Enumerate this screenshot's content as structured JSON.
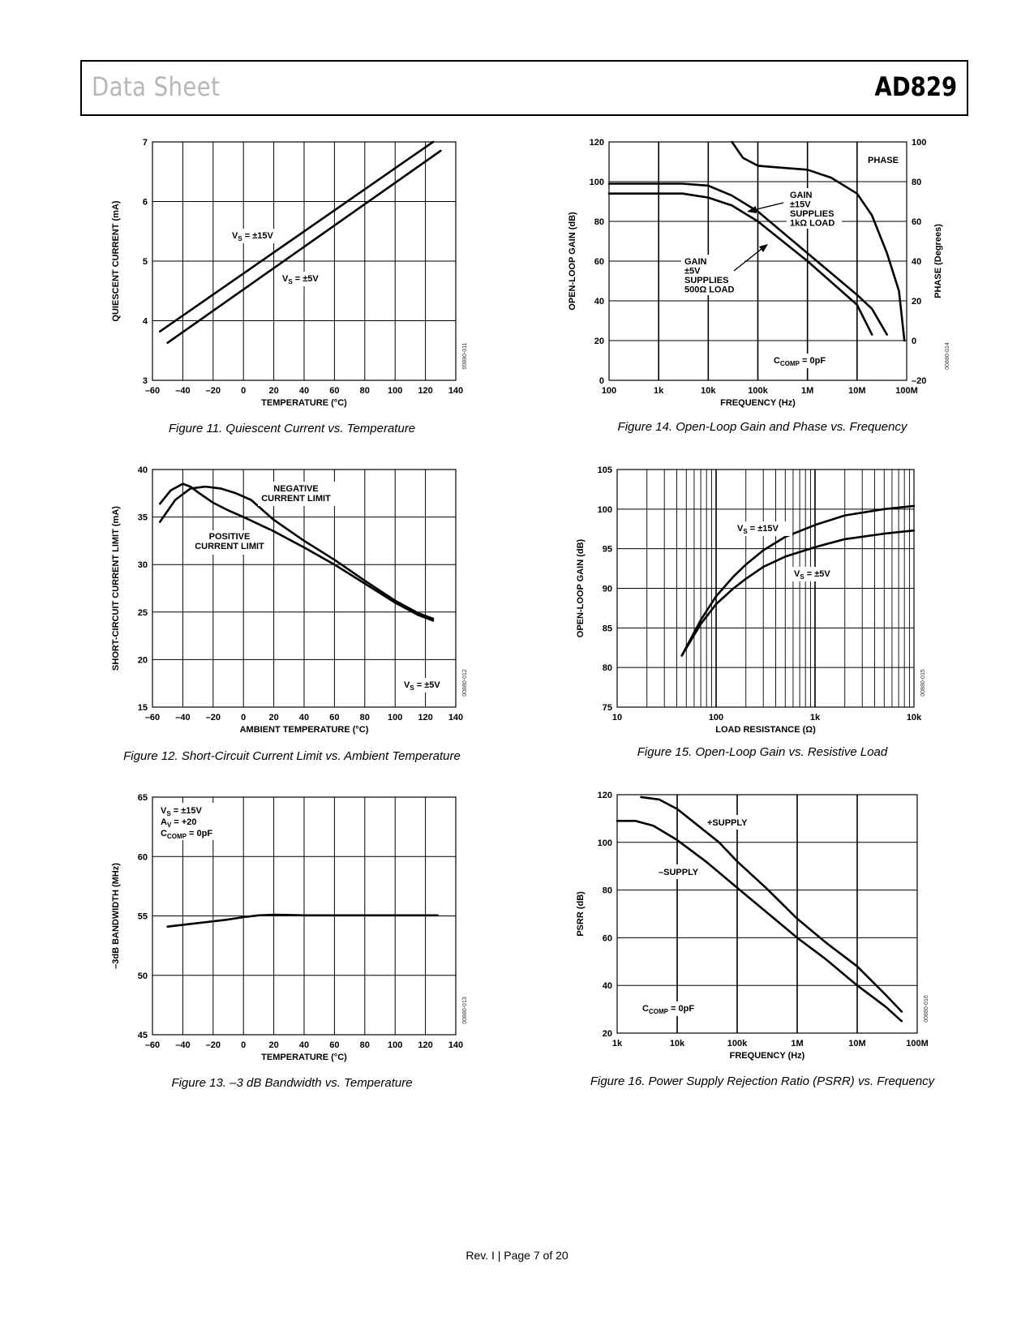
{
  "header": {
    "left": "Data Sheet",
    "right": "AD829"
  },
  "footer": "Rev. I | Page 7 of 20",
  "chart_data": [
    {
      "id": "fig11",
      "type": "line",
      "caption": "Figure 11. Quiescent Current vs. Temperature",
      "code": "00880-011",
      "xlabel": "TEMPERATURE (°C)",
      "ylabel": "QUIESCENT CURRENT (mA)",
      "xlim": [
        -60,
        140
      ],
      "ylim": [
        3,
        7
      ],
      "xticks": [
        "–60",
        "–40",
        "–20",
        "0",
        "20",
        "40",
        "60",
        "80",
        "100",
        "120",
        "140"
      ],
      "yticks": [
        "3",
        "4",
        "5",
        "6",
        "7"
      ],
      "series": [
        {
          "name": "VS = ±15V",
          "x": [
            -55,
            125
          ],
          "y": [
            3.82,
            7.0
          ]
        },
        {
          "name": "VS = ±5V",
          "x": [
            -50,
            130
          ],
          "y": [
            3.63,
            6.85
          ]
        }
      ],
      "annotations": [
        {
          "label": "V",
          "sub": "S",
          "rest": " = ±15V"
        },
        {
          "label": "V",
          "sub": "S",
          "rest": " = ±5V"
        }
      ]
    },
    {
      "id": "fig12",
      "type": "line",
      "caption": "Figure 12. Short-Circuit Current Limit vs. Ambient Temperature",
      "code": "00880-012",
      "xlabel": "AMBIENT TEMPERATURE (°C)",
      "ylabel": "SHORT-CIRCUIT CURRENT LIMIT (mA)",
      "xlim": [
        -60,
        140
      ],
      "ylim": [
        15,
        40
      ],
      "xticks": [
        "–60",
        "–40",
        "–20",
        "0",
        "20",
        "40",
        "60",
        "80",
        "100",
        "120",
        "140"
      ],
      "yticks": [
        "15",
        "20",
        "25",
        "30",
        "35",
        "40"
      ],
      "series": [
        {
          "name": "NEGATIVE CURRENT LIMIT",
          "x": [
            -55,
            -45,
            -35,
            -25,
            -15,
            -5,
            5,
            20,
            40,
            60,
            80,
            100,
            115,
            125
          ],
          "y": [
            34.5,
            36.8,
            38.0,
            38.2,
            38.0,
            37.5,
            36.8,
            34.7,
            32.5,
            30.5,
            28.3,
            26.2,
            24.9,
            24.3
          ]
        },
        {
          "name": "POSITIVE CURRENT LIMIT",
          "x": [
            -55,
            -48,
            -40,
            -35,
            -30,
            -20,
            -10,
            0,
            20,
            40,
            60,
            80,
            100,
            115,
            125
          ],
          "y": [
            36.4,
            37.8,
            38.5,
            38.2,
            37.6,
            36.5,
            35.7,
            35.0,
            33.5,
            31.8,
            30.0,
            28.0,
            26.0,
            24.7,
            24.1
          ]
        }
      ],
      "annotations": [
        {
          "text": [
            "NEGATIVE",
            "CURRENT LIMIT"
          ]
        },
        {
          "text": [
            "POSITIVE",
            "CURRENT LIMIT"
          ]
        },
        {
          "label": "V",
          "sub": "S",
          "rest": " = ±5V"
        }
      ]
    },
    {
      "id": "fig13",
      "type": "line",
      "caption": "Figure 13. –3 dB Bandwidth vs. Temperature",
      "code": "00880-013",
      "xlabel": "TEMPERATURE (°C)",
      "ylabel": "–3dB BANDWIDTH (MHz)",
      "xlim": [
        -60,
        140
      ],
      "ylim": [
        45,
        65
      ],
      "xticks": [
        "–60",
        "–40",
        "–20",
        "0",
        "20",
        "40",
        "60",
        "80",
        "100",
        "120",
        "140"
      ],
      "yticks": [
        "45",
        "50",
        "55",
        "60",
        "65"
      ],
      "series": [
        {
          "name": "bandwidth",
          "x": [
            -50,
            -30,
            -10,
            0,
            10,
            20,
            30,
            40,
            60,
            80,
            100,
            128
          ],
          "y": [
            54.1,
            54.4,
            54.7,
            54.9,
            55.05,
            55.1,
            55.08,
            55.05,
            55.05,
            55.05,
            55.05,
            55.05
          ]
        }
      ],
      "annotations": [
        {
          "label": "V",
          "sub": "S",
          "rest": " = ±15V"
        },
        {
          "label": "A",
          "sub": "V",
          "rest": " = +20"
        },
        {
          "label": "C",
          "sub": "COMP",
          "rest": " = 0pF"
        }
      ]
    },
    {
      "id": "fig14",
      "type": "line",
      "caption": "Figure 14. Open-Loop Gain and Phase vs. Frequency",
      "code": "00880-014",
      "xlabel": "FREQUENCY (Hz)",
      "ylabel": "OPEN-LOOP GAIN (dB)",
      "y2label": "PHASE (Degrees)",
      "xscale": "log",
      "xlim": [
        100,
        100000000
      ],
      "ylim": [
        0,
        120
      ],
      "y2lim": [
        -20,
        100
      ],
      "xticks": [
        "100",
        "1k",
        "10k",
        "100k",
        "1M",
        "10M",
        "100M"
      ],
      "yticks": [
        "0",
        "20",
        "40",
        "60",
        "80",
        "100",
        "120"
      ],
      "y2ticks": [
        "–20",
        "0",
        "20",
        "40",
        "60",
        "80",
        "100"
      ],
      "series": [
        {
          "name": "GAIN ±15V SUPPLIES 1kΩ LOAD",
          "axis": "left",
          "x": [
            100,
            3000,
            10000,
            30000,
            100000,
            1000000,
            10000000,
            20000000,
            40000000
          ],
          "y": [
            99,
            99,
            98,
            93,
            85,
            64,
            43,
            36,
            23
          ]
        },
        {
          "name": "GAIN ±5V SUPPLIES 500Ω LOAD",
          "axis": "left",
          "x": [
            100,
            3000,
            10000,
            30000,
            100000,
            1000000,
            10000000,
            20000000
          ],
          "y": [
            94,
            94,
            92,
            88,
            80,
            60,
            38,
            23
          ]
        },
        {
          "name": "PHASE",
          "axis": "right",
          "x": [
            30000,
            50000,
            100000,
            300000,
            1000000,
            3000000,
            10000000,
            20000000,
            40000000,
            70000000,
            90000000
          ],
          "y": [
            100,
            92,
            88,
            87,
            86,
            82,
            74,
            63,
            44,
            25,
            0
          ]
        }
      ],
      "annotations": [
        {
          "text": [
            "PHASE"
          ]
        },
        {
          "text": [
            "GAIN",
            "±15V",
            "SUPPLIES",
            "1kΩ LOAD"
          ]
        },
        {
          "text": [
            "GAIN",
            "±5V",
            "SUPPLIES",
            "500Ω LOAD"
          ]
        },
        {
          "label": "C",
          "sub": "COMP",
          "rest": " = 0pF"
        }
      ]
    },
    {
      "id": "fig15",
      "type": "line",
      "caption": "Figure 15. Open-Loop Gain vs. Resistive Load",
      "code": "00880-015",
      "xlabel": "LOAD RESISTANCE (Ω)",
      "ylabel": "OPEN-LOOP GAIN (dB)",
      "xscale": "log",
      "xlim": [
        10,
        10000
      ],
      "ylim": [
        75,
        105
      ],
      "xticks": [
        "10",
        "100",
        "1k",
        "10k"
      ],
      "yticks": [
        "75",
        "80",
        "85",
        "90",
        "95",
        "100",
        "105"
      ],
      "series": [
        {
          "name": "VS = ±15V",
          "x": [
            45,
            70,
            100,
            150,
            200,
            300,
            500,
            1000,
            2000,
            5000,
            10000
          ],
          "y": [
            81.5,
            86.0,
            89.0,
            91.5,
            93.0,
            94.8,
            96.5,
            98.0,
            99.2,
            100.0,
            100.4
          ]
        },
        {
          "name": "VS = ±5V",
          "x": [
            45,
            70,
            100,
            150,
            200,
            300,
            500,
            1000,
            2000,
            5000,
            10000
          ],
          "y": [
            81.5,
            85.5,
            88.0,
            90.0,
            91.2,
            92.7,
            94.0,
            95.2,
            96.2,
            96.9,
            97.3
          ]
        }
      ],
      "annotations": [
        {
          "label": "V",
          "sub": "S",
          "rest": " = ±15V"
        },
        {
          "label": "V",
          "sub": "S",
          "rest": " = ±5V"
        }
      ]
    },
    {
      "id": "fig16",
      "type": "line",
      "caption": "Figure 16. Power Supply Rejection Ratio (PSRR) vs. Frequency",
      "code": "00880-016",
      "xlabel": "FREQUENCY (Hz)",
      "ylabel": "PSRR (dB)",
      "xscale": "log",
      "xlim": [
        1000,
        100000000
      ],
      "ylim": [
        20,
        120
      ],
      "xticks": [
        "1k",
        "10k",
        "100k",
        "1M",
        "10M",
        "100M"
      ],
      "yticks": [
        "20",
        "40",
        "60",
        "80",
        "100",
        "120"
      ],
      "series": [
        {
          "name": "+SUPPLY",
          "x": [
            2500,
            5000,
            10000,
            20000,
            50000,
            100000,
            300000,
            1000000,
            3000000,
            10000000,
            30000000,
            55000000
          ],
          "y": [
            119,
            118,
            114,
            108,
            100,
            92,
            81,
            68,
            58,
            48,
            36,
            29
          ]
        },
        {
          "name": "–SUPPLY",
          "x": [
            1000,
            2000,
            4000,
            10000,
            30000,
            100000,
            300000,
            1000000,
            3000000,
            10000000,
            30000000,
            55000000
          ],
          "y": [
            109,
            109,
            107,
            101,
            92,
            81,
            71,
            60,
            51,
            40,
            31,
            25
          ]
        }
      ],
      "annotations": [
        {
          "text": [
            "+SUPPLY"
          ]
        },
        {
          "text": [
            "–SUPPLY"
          ]
        },
        {
          "label": "C",
          "sub": "COMP",
          "rest": " = 0pF"
        }
      ]
    }
  ]
}
